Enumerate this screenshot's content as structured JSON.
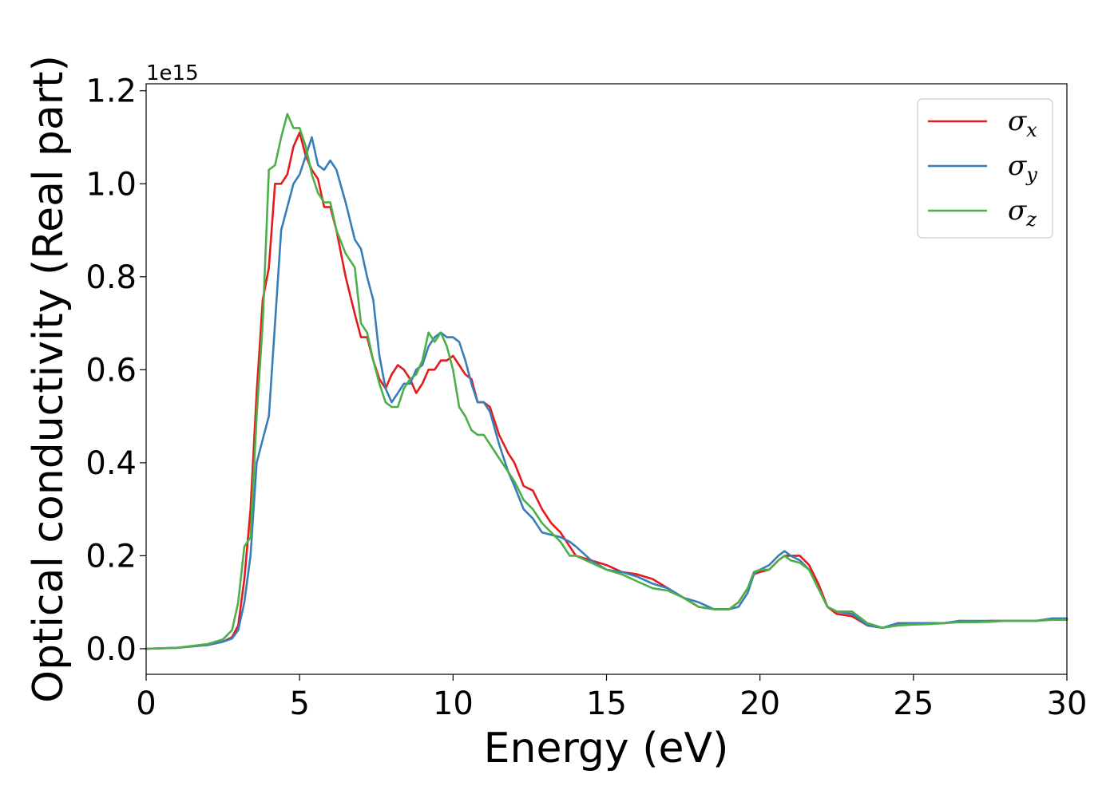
{
  "chart_data": {
    "type": "line",
    "xlabel": "Energy (eV)",
    "ylabel": "Optical conductivity (Real part)",
    "y_offset_label": "1e15",
    "xlim": [
      0,
      30
    ],
    "ylim": [
      -0.055,
      1.215
    ],
    "grid": false,
    "legend_position": "top-right",
    "x_ticks": [
      0,
      5,
      10,
      15,
      20,
      25,
      30
    ],
    "x_tick_labels": [
      "0",
      "5",
      "10",
      "15",
      "20",
      "25",
      "30"
    ],
    "y_ticks": [
      0.0,
      0.2,
      0.4,
      0.6,
      0.8,
      1.0,
      1.2
    ],
    "y_tick_labels": [
      "0.0",
      "0.2",
      "0.4",
      "0.6",
      "0.8",
      "1.0",
      "1.2"
    ],
    "series": [
      {
        "name": "σx",
        "label_base": "σ",
        "label_sub": "x",
        "color": "#e41a1c",
        "x": [
          0,
          1,
          2,
          2.5,
          2.8,
          3.0,
          3.2,
          3.4,
          3.6,
          3.8,
          4.0,
          4.2,
          4.4,
          4.6,
          4.8,
          5.0,
          5.2,
          5.4,
          5.6,
          5.8,
          6.0,
          6.2,
          6.5,
          6.8,
          7.0,
          7.2,
          7.4,
          7.6,
          7.8,
          8.0,
          8.2,
          8.4,
          8.6,
          8.8,
          9.0,
          9.2,
          9.4,
          9.6,
          9.8,
          10.0,
          10.2,
          10.4,
          10.6,
          10.8,
          11.0,
          11.2,
          11.5,
          11.8,
          12.0,
          12.3,
          12.6,
          12.9,
          13.2,
          13.5,
          13.8,
          14.0,
          14.5,
          15.0,
          15.5,
          16.0,
          16.5,
          17.0,
          17.5,
          18.0,
          18.5,
          19.0,
          19.3,
          19.6,
          19.8,
          20.0,
          20.3,
          20.6,
          20.8,
          21.0,
          21.3,
          21.6,
          21.9,
          22.2,
          22.5,
          23.0,
          23.5,
          24.0,
          24.5,
          25.0,
          25.5,
          26.0,
          26.5,
          27.0,
          27.5,
          28.0,
          28.5,
          29.0,
          29.5,
          30.0
        ],
        "y": [
          0.0,
          0.002,
          0.008,
          0.015,
          0.025,
          0.05,
          0.15,
          0.3,
          0.55,
          0.75,
          0.82,
          1.0,
          1.0,
          1.02,
          1.08,
          1.11,
          1.06,
          1.03,
          1.01,
          0.95,
          0.95,
          0.9,
          0.8,
          0.72,
          0.67,
          0.67,
          0.62,
          0.58,
          0.56,
          0.59,
          0.61,
          0.6,
          0.58,
          0.55,
          0.57,
          0.6,
          0.6,
          0.62,
          0.62,
          0.63,
          0.61,
          0.59,
          0.58,
          0.53,
          0.53,
          0.52,
          0.46,
          0.42,
          0.4,
          0.35,
          0.34,
          0.3,
          0.27,
          0.25,
          0.22,
          0.2,
          0.19,
          0.18,
          0.165,
          0.16,
          0.15,
          0.13,
          0.11,
          0.09,
          0.085,
          0.085,
          0.1,
          0.13,
          0.16,
          0.165,
          0.17,
          0.19,
          0.2,
          0.2,
          0.2,
          0.18,
          0.14,
          0.09,
          0.075,
          0.07,
          0.05,
          0.045,
          0.055,
          0.055,
          0.055,
          0.055,
          0.06,
          0.058,
          0.06,
          0.06,
          0.06,
          0.06,
          0.065,
          0.065
        ]
      },
      {
        "name": "σy",
        "label_base": "σ",
        "label_sub": "y",
        "color": "#377eb8",
        "x": [
          0,
          1,
          2,
          2.5,
          2.8,
          3.0,
          3.2,
          3.4,
          3.6,
          3.8,
          4.0,
          4.2,
          4.4,
          4.6,
          4.8,
          5.0,
          5.2,
          5.4,
          5.6,
          5.8,
          6.0,
          6.2,
          6.5,
          6.8,
          7.0,
          7.2,
          7.4,
          7.6,
          7.8,
          8.0,
          8.2,
          8.4,
          8.6,
          8.8,
          9.0,
          9.2,
          9.4,
          9.6,
          9.8,
          10.0,
          10.2,
          10.4,
          10.6,
          10.8,
          11.0,
          11.2,
          11.5,
          11.8,
          12.0,
          12.3,
          12.6,
          12.9,
          13.2,
          13.5,
          13.8,
          14.0,
          14.5,
          15.0,
          15.5,
          16.0,
          16.5,
          17.0,
          17.5,
          18.0,
          18.5,
          19.0,
          19.3,
          19.6,
          19.8,
          20.0,
          20.3,
          20.6,
          20.8,
          21.0,
          21.3,
          21.6,
          21.9,
          22.2,
          22.5,
          23.0,
          23.5,
          24.0,
          24.5,
          25.0,
          25.5,
          26.0,
          26.5,
          27.0,
          27.5,
          28.0,
          28.5,
          29.0,
          29.5,
          30.0
        ],
        "y": [
          0.0,
          0.002,
          0.008,
          0.015,
          0.022,
          0.04,
          0.1,
          0.2,
          0.4,
          0.45,
          0.5,
          0.7,
          0.9,
          0.95,
          1.0,
          1.02,
          1.06,
          1.1,
          1.04,
          1.03,
          1.05,
          1.03,
          0.96,
          0.88,
          0.86,
          0.8,
          0.75,
          0.63,
          0.56,
          0.53,
          0.55,
          0.57,
          0.57,
          0.6,
          0.61,
          0.65,
          0.67,
          0.68,
          0.67,
          0.67,
          0.66,
          0.62,
          0.57,
          0.53,
          0.53,
          0.51,
          0.44,
          0.38,
          0.35,
          0.3,
          0.28,
          0.25,
          0.245,
          0.24,
          0.23,
          0.22,
          0.19,
          0.17,
          0.165,
          0.155,
          0.14,
          0.13,
          0.11,
          0.1,
          0.085,
          0.085,
          0.09,
          0.12,
          0.16,
          0.17,
          0.18,
          0.2,
          0.21,
          0.2,
          0.19,
          0.17,
          0.13,
          0.09,
          0.08,
          0.075,
          0.05,
          0.045,
          0.055,
          0.055,
          0.055,
          0.055,
          0.06,
          0.06,
          0.06,
          0.06,
          0.06,
          0.06,
          0.065,
          0.065
        ]
      },
      {
        "name": "σz",
        "label_base": "σ",
        "label_sub": "z",
        "color": "#4daf4a",
        "x": [
          0,
          1,
          2,
          2.5,
          2.8,
          3.0,
          3.2,
          3.4,
          3.6,
          3.8,
          4.0,
          4.2,
          4.4,
          4.6,
          4.8,
          5.0,
          5.2,
          5.4,
          5.6,
          5.8,
          6.0,
          6.2,
          6.5,
          6.8,
          7.0,
          7.2,
          7.4,
          7.6,
          7.8,
          8.0,
          8.2,
          8.4,
          8.6,
          8.8,
          9.0,
          9.2,
          9.4,
          9.6,
          9.8,
          10.0,
          10.2,
          10.4,
          10.6,
          10.8,
          11.0,
          11.2,
          11.5,
          11.8,
          12.0,
          12.3,
          12.6,
          12.9,
          13.2,
          13.5,
          13.8,
          14.0,
          14.5,
          15.0,
          15.5,
          16.0,
          16.5,
          17.0,
          17.5,
          18.0,
          18.5,
          19.0,
          19.3,
          19.6,
          19.8,
          20.0,
          20.3,
          20.6,
          20.8,
          21.0,
          21.3,
          21.6,
          21.9,
          22.2,
          22.5,
          23.0,
          23.5,
          24.0,
          24.5,
          25.0,
          25.5,
          26.0,
          26.5,
          27.0,
          27.5,
          28.0,
          28.5,
          29.0,
          29.5,
          30.0
        ],
        "y": [
          0.0,
          0.002,
          0.01,
          0.02,
          0.04,
          0.1,
          0.22,
          0.24,
          0.5,
          0.7,
          1.03,
          1.04,
          1.1,
          1.15,
          1.12,
          1.12,
          1.08,
          1.02,
          0.98,
          0.96,
          0.96,
          0.9,
          0.85,
          0.82,
          0.7,
          0.68,
          0.62,
          0.57,
          0.53,
          0.52,
          0.52,
          0.56,
          0.58,
          0.59,
          0.62,
          0.68,
          0.66,
          0.68,
          0.65,
          0.6,
          0.52,
          0.5,
          0.47,
          0.46,
          0.46,
          0.44,
          0.41,
          0.38,
          0.36,
          0.32,
          0.3,
          0.27,
          0.25,
          0.23,
          0.2,
          0.2,
          0.185,
          0.17,
          0.16,
          0.145,
          0.13,
          0.125,
          0.11,
          0.09,
          0.085,
          0.085,
          0.1,
          0.13,
          0.165,
          0.17,
          0.17,
          0.19,
          0.2,
          0.19,
          0.185,
          0.17,
          0.13,
          0.09,
          0.08,
          0.08,
          0.055,
          0.045,
          0.05,
          0.052,
          0.053,
          0.055,
          0.057,
          0.057,
          0.058,
          0.06,
          0.06,
          0.06,
          0.062,
          0.062
        ]
      }
    ]
  }
}
